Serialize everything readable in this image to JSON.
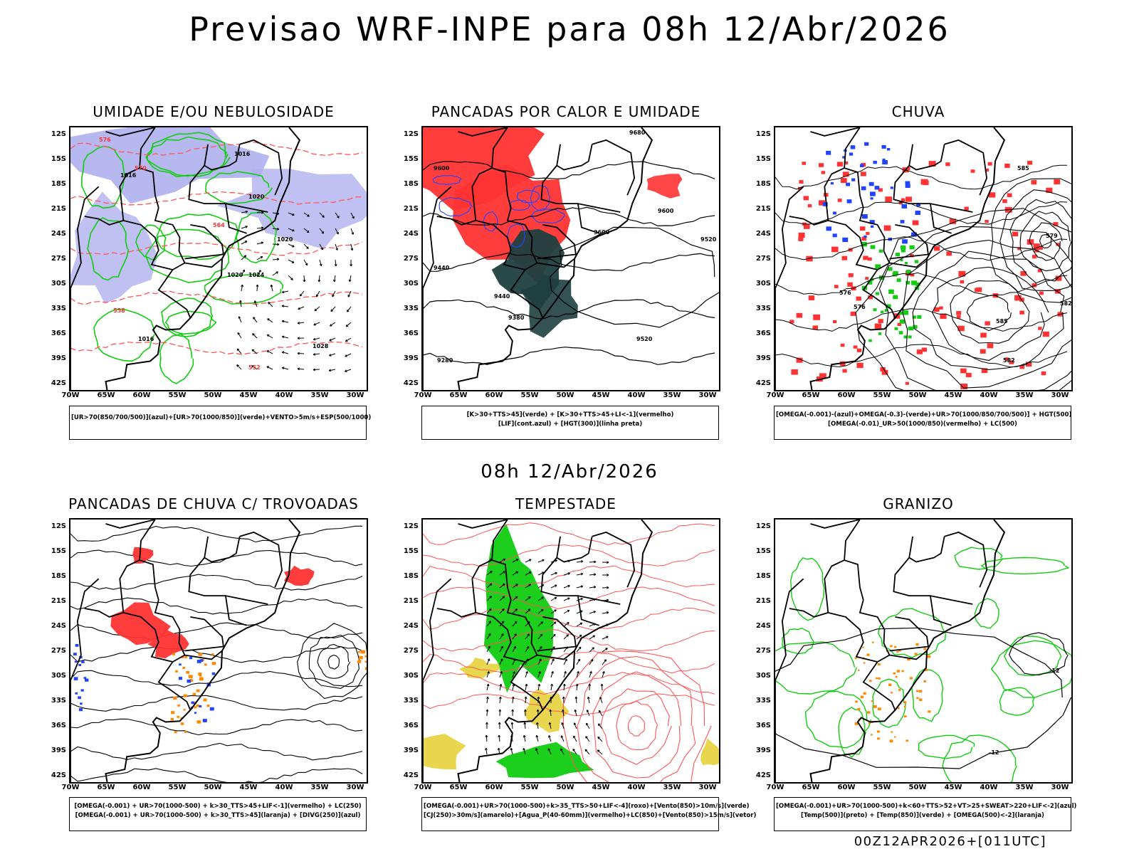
{
  "title": "Previsao WRF-INPE  para 08h 12/Abr/2026",
  "mid_date": "08h 12/Abr/2026",
  "footer": "00Z12APR2026+[011UTC]",
  "axis": {
    "lat_labels": [
      "12S",
      "15S",
      "18S",
      "21S",
      "24S",
      "27S",
      "30S",
      "33S",
      "36S",
      "39S",
      "42S"
    ],
    "lon_labels": [
      "70W",
      "65W",
      "60W",
      "55W",
      "50W",
      "45W",
      "40W",
      "35W",
      "30W"
    ]
  },
  "colors": {
    "purple_fill": "#b0b0f0",
    "green": "#11cc11",
    "red": "#ff3333",
    "dark_teal": "#1f3f3f",
    "blue": "#2244ff",
    "orange": "#ff8800",
    "yellow": "#e6d23c",
    "line_red": "#ff5555"
  },
  "panels": [
    {
      "id": "umidade",
      "title": "UMIDADE E/OU NEBULOSIDADE",
      "legend": [
        "[UR>70(850/700/500)](azul)+[UR>70(1000/850)](verde)+VENTO>5m/s+ESP(500/1000)"
      ],
      "contour_labels": [
        "1016",
        "1020",
        "1020",
        "1020",
        "1024",
        "1016",
        "1016",
        "1028",
        "576",
        "570",
        "564",
        "558",
        "552"
      ]
    },
    {
      "id": "pancadas-calor",
      "title": "PANCADAS POR CALOR E UMIDADE",
      "legend": [
        "[K>30+TTS>45](verde) + [K>30+TTS>45+LI<-1](vermelho)",
        "[LIF](cont.azul) + [HGT(300)](linha preta)"
      ],
      "contour_labels": [
        "9680",
        "9600",
        "9600",
        "9600",
        "9520",
        "9440",
        "9440",
        "9380",
        "9280",
        "9520"
      ]
    },
    {
      "id": "chuva",
      "title": "CHUVA",
      "legend": [
        "[OMEGA(-0.001)-(azul)+OMEGA(-0.3)-(verde)+UR>70(1000/850/700/500)] + HGT(500)",
        "[OMEGA(-0.01)_UR>50(1000/850)(vermelho) + LC(500)"
      ],
      "contour_labels": [
        "585",
        "576",
        "582",
        "585",
        "582",
        "579",
        "576"
      ]
    },
    {
      "id": "pancadas-trovoadas",
      "title": "PANCADAS DE CHUVA C/ TROVOADAS",
      "legend": [
        "[OMEGA(-0.001) + UR>70(1000-500) + k>30_TTS>45+LIF<-1](vermelho) + LC(250)",
        "[OMEGA(-0.001) + UR>70(1000-500) + k>30_TTS>45](laranja) + [DIVG(250)](azul)"
      ],
      "contour_labels": []
    },
    {
      "id": "tempestade",
      "title": "TEMPESTADE",
      "legend": [
        "[OMEGA(-0.001)+UR>70(1000-500)+k>35_TTS>50+LIF<-4](roxo)+[Vento(850)>10m/s](verde)",
        "[CJ(250)>30m/s](amarelo)+[Agua_P(40-60mm)](vermelho)+LC(850)+[Vento(850)>15m/s](vetor)"
      ],
      "contour_labels": []
    },
    {
      "id": "granizo",
      "title": "GRANIZO",
      "legend": [
        "[OMEGA(-0.001)+UR>70(1000-500)+k<60+TTS>52+VT>25+SWEAT>220+LIF<-2](azul)",
        "[Temp(500)](preto) + [Temp(850)](verde) + [OMEGA(500)<-2](laranja)"
      ],
      "contour_labels": [
        "-12",
        "-12"
      ]
    }
  ]
}
